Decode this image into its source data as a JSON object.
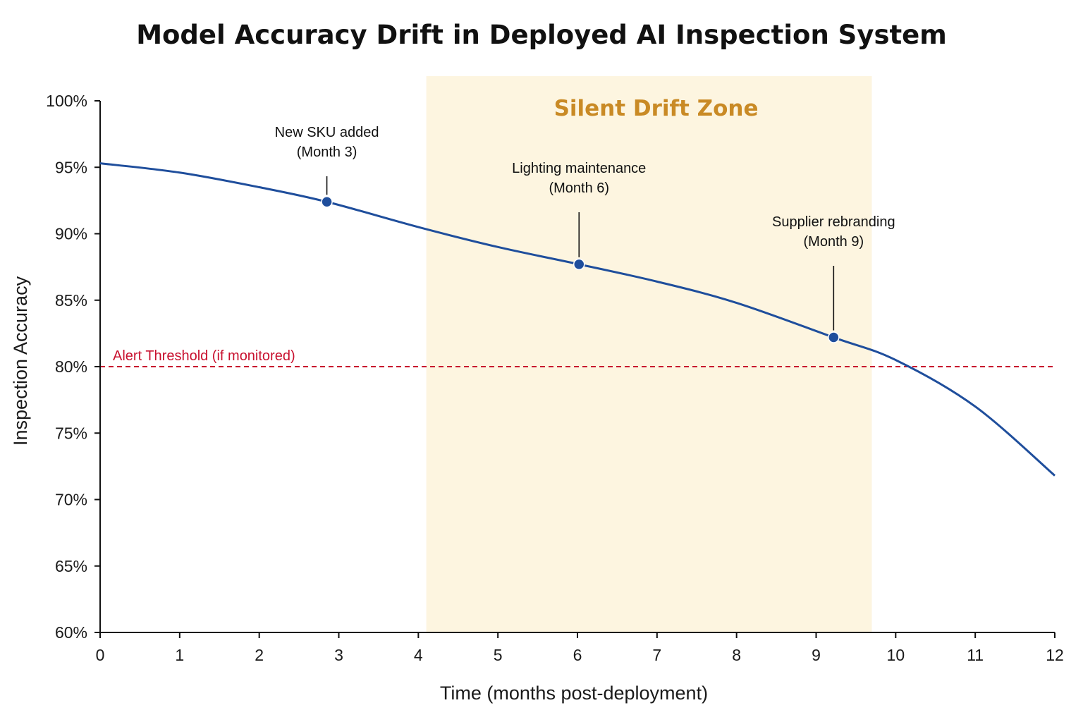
{
  "chart_data": {
    "type": "line",
    "title": "Model Accuracy Drift in Deployed AI Inspection System",
    "xlabel": "Time (months post-deployment)",
    "ylabel": "Inspection Accuracy",
    "xlim": [
      0,
      12
    ],
    "ylim": [
      60,
      100
    ],
    "x_ticks": [
      0,
      1,
      2,
      3,
      4,
      5,
      6,
      7,
      8,
      9,
      10,
      11,
      12
    ],
    "y_ticks": [
      60,
      65,
      70,
      75,
      80,
      85,
      90,
      95,
      100
    ],
    "y_tick_labels": [
      "60%",
      "65%",
      "70%",
      "75%",
      "80%",
      "85%",
      "90%",
      "95%",
      "100%"
    ],
    "grid": false,
    "series": [
      {
        "color": "#1f4e9c",
        "x": [
          0,
          1,
          2,
          2.85,
          4,
          5,
          6.02,
          7,
          8,
          9.22,
          10,
          11,
          12
        ],
        "y": [
          95.3,
          94.6,
          93.5,
          92.4,
          90.5,
          89.0,
          87.7,
          86.4,
          84.8,
          82.2,
          80.5,
          77.0,
          71.8
        ]
      }
    ],
    "annotations": [
      {
        "x": 2.85,
        "y": 92.4,
        "lines": [
          "New SKU added",
          "(Month 3)"
        ]
      },
      {
        "x": 6.02,
        "y": 87.7,
        "lines": [
          "Lighting maintenance",
          "(Month 6)"
        ]
      },
      {
        "x": 9.22,
        "y": 82.2,
        "lines": [
          "Supplier rebranding",
          "(Month 9)"
        ]
      }
    ],
    "shaded_region": {
      "x_start": 4.1,
      "x_end": 9.7,
      "label": "Silent Drift Zone",
      "fill": "#fdf5e0",
      "label_color": "#c98a25"
    },
    "threshold": {
      "y": 80,
      "label": "Alert Threshold (if monitored)",
      "color": "#c8102e"
    }
  }
}
